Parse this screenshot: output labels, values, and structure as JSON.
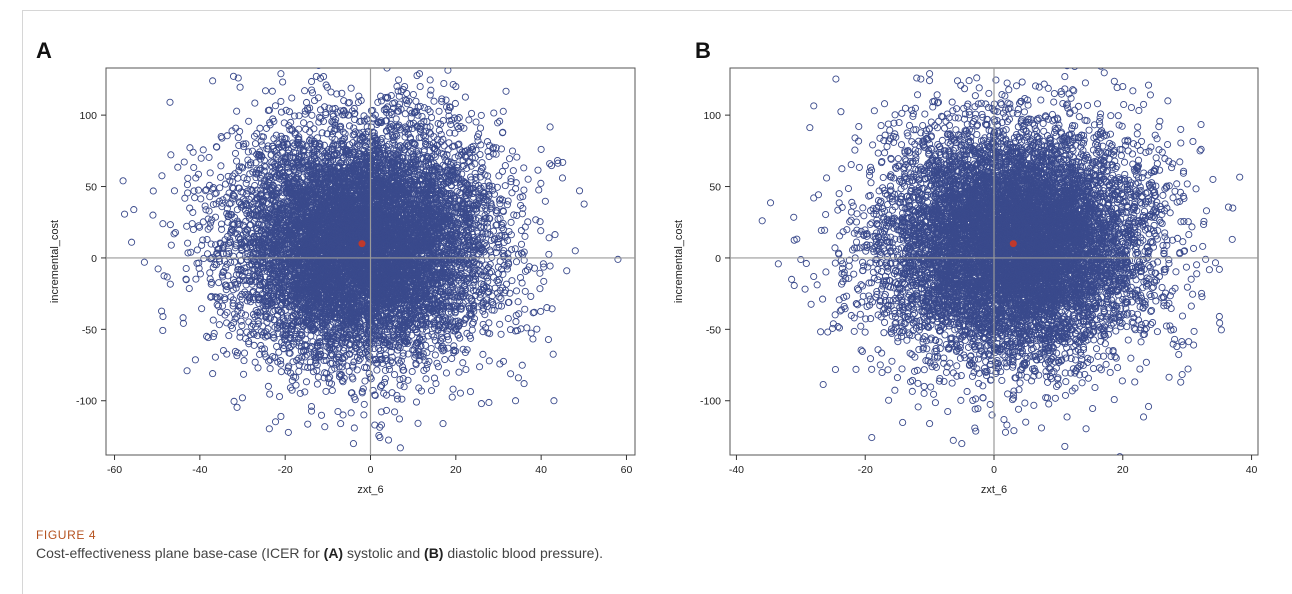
{
  "figure": {
    "label": "FIGURE 4",
    "caption_parts": [
      {
        "text": "Cost-effectiveness plane base-case (ICER for ",
        "bold": false
      },
      {
        "text": "(A)",
        "bold": true
      },
      {
        "text": " systolic and ",
        "bold": false
      },
      {
        "text": "(B)",
        "bold": true
      },
      {
        "text": " diastolic blood pressure).",
        "bold": false
      }
    ]
  },
  "colors": {
    "marker_outline": "#3a4a8c",
    "marker_fill": "#3f51a1",
    "reference_line": "#9a9a9a",
    "mean_point": "#c0392b",
    "axis": "#333333"
  },
  "chart_data": [
    {
      "panel_letter": "A",
      "type": "scatter",
      "xlabel": "zxt_6",
      "ylabel": "incremental_cost",
      "xlim": [
        -62,
        62
      ],
      "ylim": [
        -138,
        133
      ],
      "xticks": [
        -60,
        -40,
        -20,
        0,
        20,
        40,
        60
      ],
      "yticks": [
        -100,
        -50,
        0,
        50,
        100
      ],
      "reference_lines": {
        "x": 0,
        "y": 0
      },
      "cloud": {
        "n_points": 10000,
        "x_mean": -2,
        "x_sd": 15,
        "y_mean": 10,
        "y_sd": 40
      },
      "mean_point": {
        "x": -2,
        "y": 10
      },
      "outliers": [
        {
          "x": -58,
          "y": 54
        },
        {
          "x": -56,
          "y": 11
        },
        {
          "x": -53,
          "y": -3
        },
        {
          "x": -51,
          "y": 30
        },
        {
          "x": -47,
          "y": 109
        },
        {
          "x": -43,
          "y": -79
        },
        {
          "x": -37,
          "y": 124
        },
        {
          "x": -37,
          "y": -81
        },
        {
          "x": -31,
          "y": 126
        },
        {
          "x": -21,
          "y": 129
        },
        {
          "x": -21,
          "y": -111
        },
        {
          "x": -11,
          "y": 127
        },
        {
          "x": -7,
          "y": -116
        },
        {
          "x": -4,
          "y": -130
        },
        {
          "x": 1,
          "y": -117
        },
        {
          "x": 7,
          "y": -133
        },
        {
          "x": 8,
          "y": 120
        },
        {
          "x": 20,
          "y": 120
        },
        {
          "x": 17,
          "y": -116
        },
        {
          "x": 26,
          "y": -102
        },
        {
          "x": 34,
          "y": -100
        },
        {
          "x": 40,
          "y": 76
        },
        {
          "x": 42,
          "y": 66
        },
        {
          "x": 45,
          "y": 56
        },
        {
          "x": 46,
          "y": -9
        },
        {
          "x": 48,
          "y": 5
        },
        {
          "x": 49,
          "y": 47
        },
        {
          "x": 58,
          "y": -1
        },
        {
          "x": 43,
          "y": -100
        },
        {
          "x": 36,
          "y": -88
        },
        {
          "x": -35,
          "y": 85
        },
        {
          "x": 31,
          "y": 88
        }
      ]
    },
    {
      "panel_letter": "B",
      "type": "scatter",
      "xlabel": "zxt_6",
      "ylabel": "incremental_cost",
      "xlim": [
        -41,
        41
      ],
      "ylim": [
        -138,
        133
      ],
      "xticks": [
        -40,
        -20,
        0,
        20,
        40
      ],
      "yticks": [
        -100,
        -50,
        0,
        50,
        100
      ],
      "reference_lines": {
        "x": 0,
        "y": 0
      },
      "cloud": {
        "n_points": 10000,
        "x_mean": 3,
        "x_sd": 10,
        "y_mean": 10,
        "y_sd": 40
      },
      "mean_point": {
        "x": 3,
        "y": 10
      },
      "outliers": [
        {
          "x": -36,
          "y": 26
        },
        {
          "x": -28,
          "y": 42
        },
        {
          "x": -28,
          "y": -13
        },
        {
          "x": -26,
          "y": 56
        },
        {
          "x": -24,
          "y": -49
        },
        {
          "x": -17,
          "y": 108
        },
        {
          "x": -12,
          "y": 126
        },
        {
          "x": -10,
          "y": 129
        },
        {
          "x": -10,
          "y": -116
        },
        {
          "x": -5,
          "y": -130
        },
        {
          "x": 2,
          "y": -117
        },
        {
          "x": 11,
          "y": 127
        },
        {
          "x": 11,
          "y": -132
        },
        {
          "x": 20,
          "y": 120
        },
        {
          "x": 24,
          "y": 121
        },
        {
          "x": 27,
          "y": 110
        },
        {
          "x": 24,
          "y": -104
        },
        {
          "x": 29,
          "y": 90
        },
        {
          "x": 32,
          "y": 75
        },
        {
          "x": 34,
          "y": 55
        },
        {
          "x": 35,
          "y": -41
        },
        {
          "x": 35,
          "y": -8
        },
        {
          "x": 37,
          "y": 13
        },
        {
          "x": 33,
          "y": 33
        },
        {
          "x": 29,
          "y": -87
        },
        {
          "x": -19,
          "y": -78
        },
        {
          "x": -21,
          "y": 92
        },
        {
          "x": 31,
          "y": -61
        }
      ]
    }
  ]
}
